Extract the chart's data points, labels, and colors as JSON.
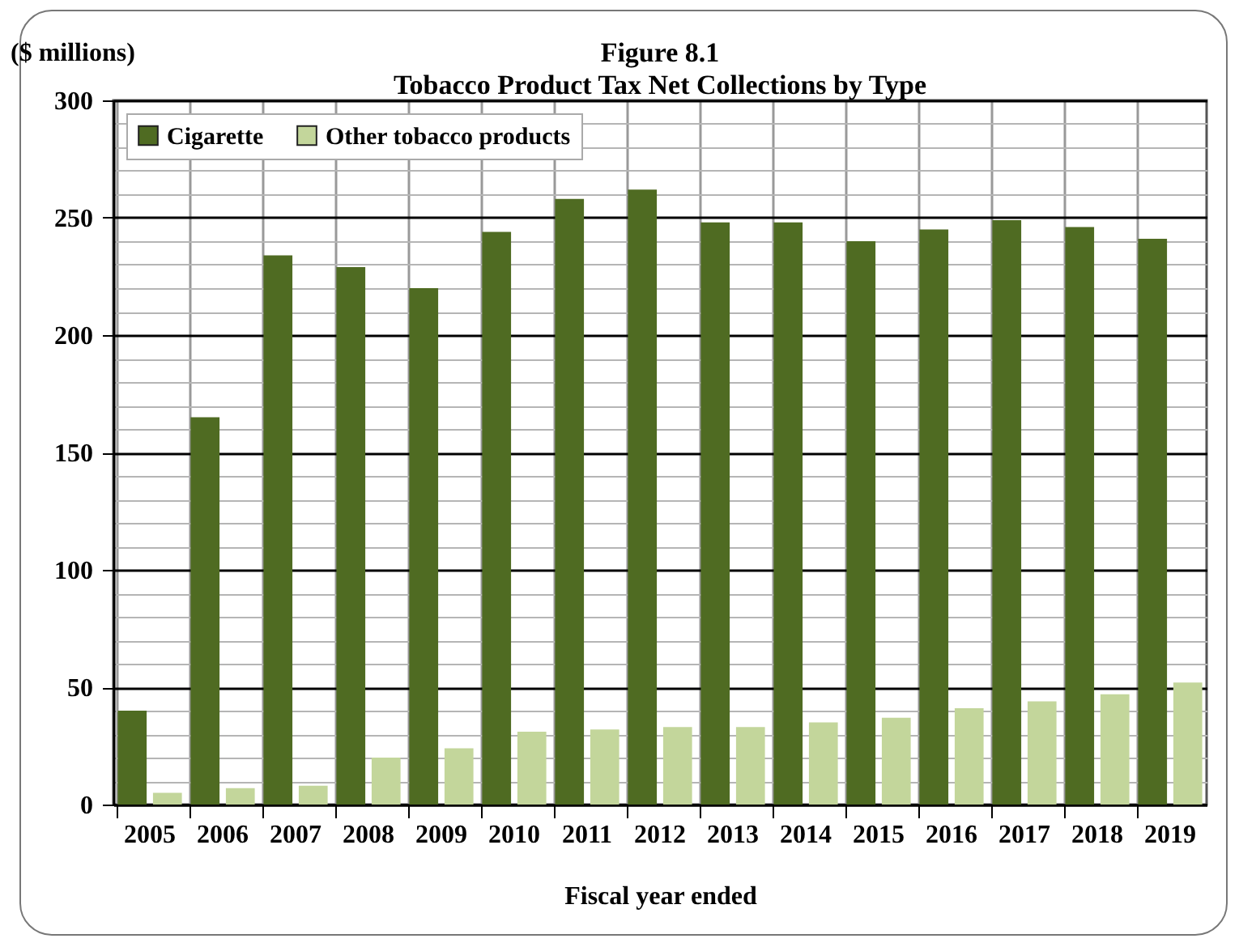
{
  "chart_data": {
    "type": "bar",
    "title": "Figure 8.1",
    "subtitle": "Tobacco Product Tax Net Collections by Type",
    "xlabel": "Fiscal year ended",
    "ylabel": "($ millions)",
    "categories": [
      "2005",
      "2006",
      "2007",
      "2008",
      "2009",
      "2010",
      "2011",
      "2012",
      "2013",
      "2014",
      "2015",
      "2016",
      "2017",
      "2018",
      "2019"
    ],
    "series": [
      {
        "name": "Cigarette",
        "color": "#4f6b22",
        "values": [
          40,
          165,
          234,
          229,
          220,
          244,
          258,
          262,
          248,
          248,
          240,
          245,
          249,
          246,
          241
        ]
      },
      {
        "name": "Other tobacco products",
        "color": "#c3d69b",
        "values": [
          5,
          7,
          8,
          20,
          24,
          31,
          32,
          33,
          33,
          35,
          37,
          41,
          44,
          47,
          52
        ]
      }
    ],
    "ylim": [
      0,
      300
    ],
    "yticks": [
      0,
      {
        "value": 10,
        "label": null
      },
      {
        "value": 20,
        "label": null
      },
      {
        "value": 30,
        "label": null
      },
      {
        "value": 40,
        "label": null
      },
      50,
      {
        "value": 60,
        "label": null
      },
      {
        "value": 70,
        "label": null
      },
      {
        "value": 80,
        "label": null
      },
      {
        "value": 90,
        "label": null
      },
      100,
      {
        "value": 110,
        "label": null
      },
      {
        "value": 120,
        "label": null
      },
      {
        "value": 130,
        "label": null
      },
      {
        "value": 140,
        "label": null
      },
      150,
      {
        "value": 160,
        "label": null
      },
      {
        "value": 170,
        "label": null
      },
      {
        "value": 180,
        "label": null
      },
      {
        "value": 190,
        "label": null
      },
      200,
      {
        "value": 210,
        "label": null
      },
      {
        "value": 220,
        "label": null
      },
      {
        "value": 230,
        "label": null
      },
      {
        "value": 240,
        "label": null
      },
      250,
      {
        "value": 260,
        "label": null
      },
      {
        "value": 270,
        "label": null
      },
      {
        "value": 280,
        "label": null
      },
      {
        "value": 290,
        "label": null
      },
      300
    ],
    "grid": true,
    "legend": "top left"
  }
}
